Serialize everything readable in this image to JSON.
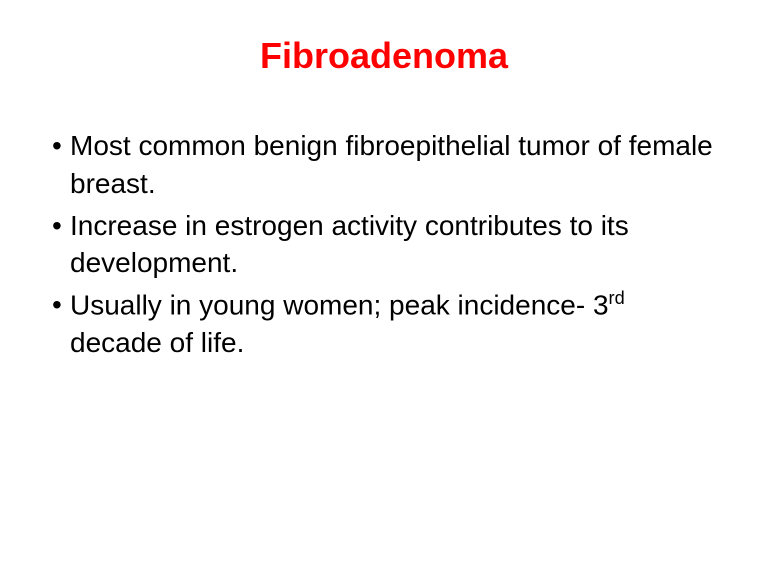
{
  "slide": {
    "title": "Fibroadenoma",
    "title_color": "#ff0000",
    "title_fontsize": 36,
    "title_fontweight": "bold",
    "background_color": "#ffffff",
    "body_color": "#000000",
    "body_fontsize": 28,
    "font_family": "Verdana",
    "bullets": [
      "Most common benign fibroepithelial tumor of female breast.",
      "Increase in estrogen activity contributes to its development.",
      "Usually in young women; peak incidence- 3rd  decade of life."
    ],
    "bullet3_prefix": "Usually in young women; peak incidence- 3",
    "bullet3_super": "rd",
    "bullet3_suffix": "  decade of life."
  }
}
